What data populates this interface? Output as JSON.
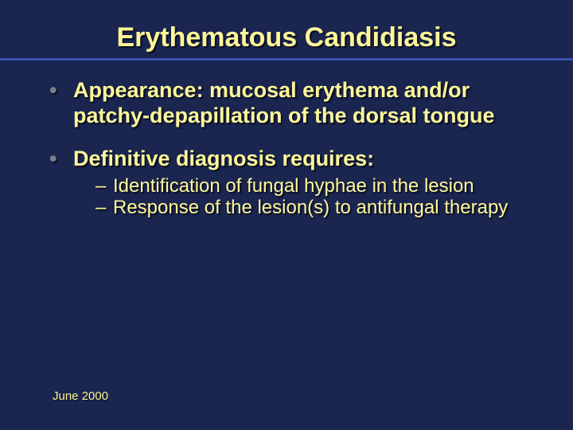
{
  "style": {
    "background_color": "#1a2550",
    "title_color": "#fef79a",
    "title_fontsize": 34,
    "hr_color": "#3a4fb0",
    "body_color": "#fef79a",
    "bullet_l1_fontsize": 27,
    "bullet_l2_fontsize": 24,
    "footer_fontsize": 15,
    "bullet_marker_color": "#7a8090"
  },
  "title": "Erythematous Candidiasis",
  "bullets": [
    {
      "text": "Appearance:  mucosal erythema and/or patchy-depapillation of the dorsal tongue",
      "sub": []
    },
    {
      "text": "Definitive diagnosis requires:",
      "sub": [
        "Identification of fungal hyphae in the lesion",
        "Response of the lesion(s) to antifungal therapy"
      ]
    }
  ],
  "footer": "June 2000"
}
